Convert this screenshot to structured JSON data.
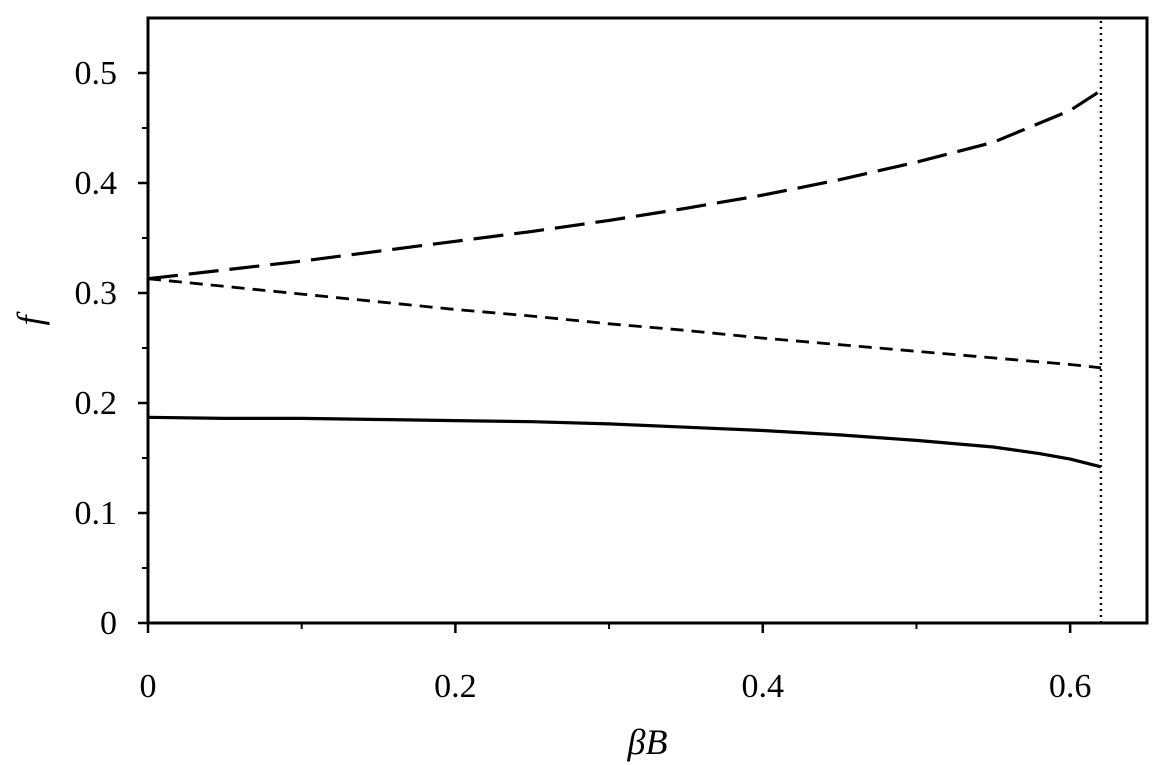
{
  "chart_data": {
    "type": "line",
    "title": "",
    "xlabel": "βB",
    "ylabel": "f",
    "xlim": [
      0,
      0.65
    ],
    "ylim": [
      0,
      0.55
    ],
    "x_ticks": [
      0,
      0.2,
      0.4,
      0.6
    ],
    "x_tick_labels": [
      "0",
      "0.2",
      "0.4",
      "0.6"
    ],
    "x_minor_ticks": [
      0.1,
      0.3,
      0.5
    ],
    "y_ticks": [
      0,
      0.1,
      0.2,
      0.3,
      0.4,
      0.5
    ],
    "y_tick_labels": [
      "0",
      "0.1",
      "0.2",
      "0.3",
      "0.4",
      "0.5"
    ],
    "y_minor_ticks": [
      0.05,
      0.15,
      0.25,
      0.35,
      0.45
    ],
    "grid": false,
    "legend": "none",
    "series": [
      {
        "style": "long-dash",
        "x": [
          0,
          0.05,
          0.1,
          0.15,
          0.2,
          0.25,
          0.3,
          0.35,
          0.4,
          0.45,
          0.5,
          0.55,
          0.6,
          0.62
        ],
        "y": [
          0.313,
          0.321,
          0.329,
          0.338,
          0.347,
          0.356,
          0.366,
          0.377,
          0.389,
          0.403,
          0.419,
          0.437,
          0.466,
          0.484
        ]
      },
      {
        "style": "short-dash",
        "x": [
          0,
          0.05,
          0.1,
          0.15,
          0.2,
          0.25,
          0.3,
          0.35,
          0.4,
          0.45,
          0.5,
          0.55,
          0.6,
          0.62
        ],
        "y": [
          0.313,
          0.306,
          0.299,
          0.292,
          0.285,
          0.279,
          0.272,
          0.266,
          0.259,
          0.253,
          0.247,
          0.241,
          0.235,
          0.232
        ]
      },
      {
        "style": "solid",
        "x": [
          0,
          0.05,
          0.1,
          0.15,
          0.2,
          0.25,
          0.3,
          0.35,
          0.4,
          0.45,
          0.5,
          0.55,
          0.58,
          0.6,
          0.62
        ],
        "y": [
          0.187,
          0.186,
          0.186,
          0.185,
          0.184,
          0.183,
          0.181,
          0.178,
          0.175,
          0.171,
          0.166,
          0.16,
          0.154,
          0.149,
          0.142
        ]
      },
      {
        "style": "dotted-vertical",
        "x": [
          0.62,
          0.62
        ],
        "y": [
          0,
          0.55
        ]
      }
    ]
  }
}
